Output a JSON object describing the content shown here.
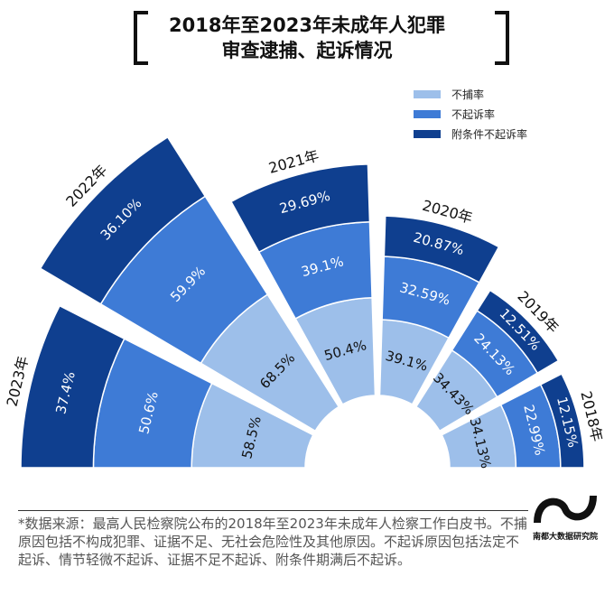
{
  "title_line1": "2018年至2023年未成年人犯罪",
  "title_line2": "审查逮捕、起诉情况",
  "chart_data": {
    "type": "polar-stacked-bar",
    "title": "2018年至2023年未成年人犯罪审查逮捕、起诉情况",
    "categories": [
      "2023年",
      "2022年",
      "2021年",
      "2020年",
      "2019年",
      "2018年"
    ],
    "series": [
      {
        "name": "不捕率",
        "color": "#9dbfea",
        "values": [
          58.5,
          68.5,
          50.4,
          39.1,
          34.43,
          34.13
        ],
        "labels": [
          "58.5%",
          "68.5%",
          "50.4%",
          "39.1%",
          "34.43%",
          "34.13%"
        ]
      },
      {
        "name": "不起诉率",
        "color": "#3e7bd6",
        "values": [
          50.6,
          59.9,
          39.1,
          32.59,
          24.13,
          22.99
        ],
        "labels": [
          "50.6%",
          "59.9%",
          "39.1%",
          "32.59%",
          "24.13%",
          "22.99%"
        ]
      },
      {
        "name": "附条件不起诉率",
        "color": "#0f3f8f",
        "values": [
          37.4,
          36.1,
          29.69,
          20.87,
          12.51,
          12.15
        ],
        "labels": [
          "37.4%",
          "36.10%",
          "29.69%",
          "20.87%",
          "12.51%",
          "12.15%"
        ]
      }
    ],
    "legend_position": "top-right"
  },
  "note": "*数据来源：最高人民检察院公布的2018年至2023年未成年人检察工作白皮书。不捕原因包括不构成犯罪、证据不足、无社会危险性及其他原因。不起诉原因包括法定不起诉、情节轻微不起诉、证据不足不起诉、附条件期满后不起诉。",
  "logo_text": "南都大数据研究院"
}
